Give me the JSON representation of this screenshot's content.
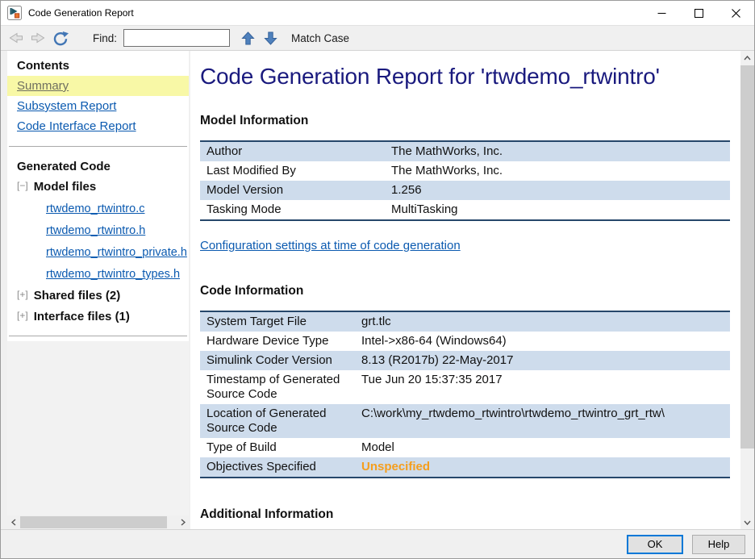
{
  "window": {
    "title": "Code Generation Report"
  },
  "toolbar": {
    "find_label": "Find:",
    "find_value": "",
    "match_case_label": "Match Case"
  },
  "sidebar": {
    "contents_title": "Contents",
    "contents_links": [
      {
        "label": "Summary",
        "selected": true
      },
      {
        "label": "Subsystem Report",
        "selected": false
      },
      {
        "label": "Code Interface Report",
        "selected": false
      }
    ],
    "generated_code_title": "Generated Code",
    "tree": [
      {
        "expander": "[−]",
        "expanded": true,
        "label": "Model files",
        "files": [
          "rtwdemo_rtwintro.c",
          "rtwdemo_rtwintro.h",
          "rtwdemo_rtwintro_private.h",
          "rtwdemo_rtwintro_types.h"
        ]
      },
      {
        "expander": "[+]",
        "expanded": false,
        "label": "Shared files (2)",
        "files": []
      },
      {
        "expander": "[+]",
        "expanded": false,
        "label": "Interface files (1)",
        "files": []
      }
    ]
  },
  "main": {
    "title": "Code Generation Report for 'rtwdemo_rtwintro'",
    "model_info": {
      "heading": "Model Information",
      "rows": [
        {
          "label": "Author",
          "value": "The MathWorks, Inc."
        },
        {
          "label": "Last Modified By",
          "value": "The MathWorks, Inc."
        },
        {
          "label": "Model Version",
          "value": "1.256"
        },
        {
          "label": "Tasking Mode",
          "value": "MultiTasking"
        }
      ]
    },
    "config_link": "Configuration settings at time of code generation",
    "code_info": {
      "heading": "Code Information",
      "rows": [
        {
          "label": "System Target File",
          "value": "grt.tlc"
        },
        {
          "label": "Hardware Device Type",
          "value": "Intel->x86-64 (Windows64)"
        },
        {
          "label": "Simulink Coder Version",
          "value": "8.13 (R2017b) 22-May-2017"
        },
        {
          "label": "Timestamp of Generated Source Code",
          "value": "Tue Jun 20 15:37:35 2017"
        },
        {
          "label": "Location of Generated Source Code",
          "value": "C:\\work\\my_rtwdemo_rtwintro\\rtwdemo_rtwintro_grt_rtw\\"
        },
        {
          "label": "Type of Build",
          "value": "Model"
        },
        {
          "label": "Objectives Specified",
          "value": "Unspecified",
          "warn": true
        }
      ]
    },
    "additional_heading": "Additional Information"
  },
  "footer": {
    "ok_label": "OK",
    "help_label": "Help"
  },
  "colors": {
    "link_blue": "#0B5AB0",
    "heading_navy": "#1A1A7E",
    "table_row_blue": "#CEDCEC",
    "table_border_navy": "#26476B",
    "selected_yellow": "#F8F8A6",
    "warning_orange": "#F59E1D",
    "toolbar_icon_blue": "#4276B5"
  }
}
